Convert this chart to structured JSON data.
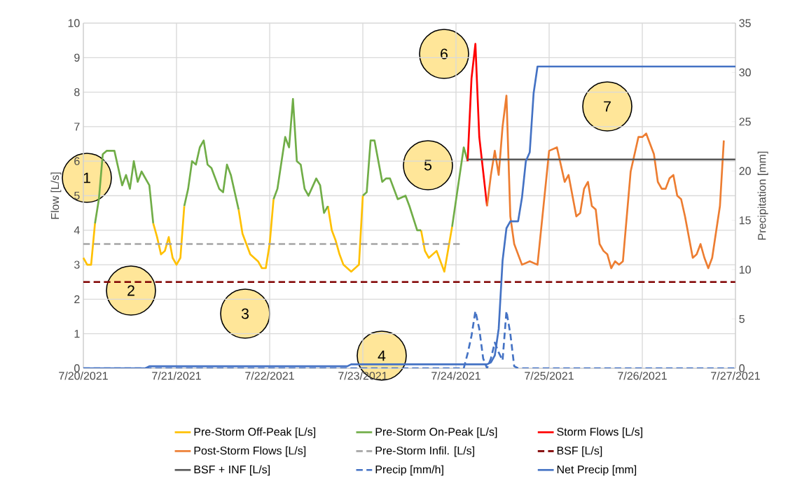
{
  "chart_data": {
    "type": "line",
    "ylabel": "Flow [L/s]",
    "y2label": "Precipitation [mm]",
    "xlim": [
      "2021-07-20",
      "2021-07-27"
    ],
    "xticks": [
      {
        "value": "2021-07-20",
        "label": "7/20/2021"
      },
      {
        "value": "2021-07-21",
        "label": "7/21/2021"
      },
      {
        "value": "2021-07-22",
        "label": "7/22/2021"
      },
      {
        "value": "2021-07-23",
        "label": "7/23/2021"
      },
      {
        "value": "2021-07-24",
        "label": "7/24/2021"
      },
      {
        "value": "2021-07-25",
        "label": "7/25/2021"
      },
      {
        "value": "2021-07-26",
        "label": "7/26/2021"
      },
      {
        "value": "2021-07-27",
        "label": "7/27/2021"
      }
    ],
    "ylim": [
      0,
      10
    ],
    "yticks": [
      0,
      1,
      2,
      3,
      4,
      5,
      6,
      7,
      8,
      9,
      10
    ],
    "y2lim": [
      0,
      35
    ],
    "y2ticks": [
      0,
      5,
      10,
      15,
      20,
      25,
      30,
      35
    ],
    "grid": true,
    "legend": "bottom",
    "series": [
      {
        "name": "Pre-Storm Off-Peak [L/s]",
        "color": "#ffc000",
        "line_style": "solid",
        "x": [
          "2021-07-20T00:00",
          "2021-07-20T01:00",
          "2021-07-20T02:00",
          "2021-07-20T03:00",
          "2021-07-20T10:00",
          "2021-07-20T18:00",
          "2021-07-20T19:00",
          "2021-07-20T20:00",
          "2021-07-20T21:00",
          "2021-07-20T22:00",
          "2021-07-20T23:00",
          "2021-07-21T00:00",
          "2021-07-21T01:00",
          "2021-07-21T02:00",
          "2021-07-21T09:00",
          "2021-07-21T16:00",
          "2021-07-21T17:00",
          "2021-07-21T19:00",
          "2021-07-21T21:00",
          "2021-07-21T22:00",
          "2021-07-21T23:00",
          "2021-07-22T00:00",
          "2021-07-22T01:00",
          "2021-07-22T08:00",
          "2021-07-22T15:00",
          "2021-07-22T16:00",
          "2021-07-22T17:00",
          "2021-07-22T18:00",
          "2021-07-22T19:00",
          "2021-07-22T21:00",
          "2021-07-22T23:00",
          "2021-07-23T00:00",
          "2021-07-23T07:00",
          "2021-07-23T15:00",
          "2021-07-23T16:00",
          "2021-07-23T17:00",
          "2021-07-23T19:00",
          "2021-07-23T21:00",
          "2021-07-23T23:00"
        ],
        "values": [
          3.2,
          3.0,
          3.0,
          4.2,
          null,
          4.2,
          3.8,
          3.3,
          3.4,
          3.8,
          3.2,
          3.0,
          3.2,
          4.7,
          null,
          4.6,
          3.9,
          3.3,
          3.1,
          2.9,
          2.9,
          3.6,
          4.9,
          null,
          4.7,
          4.0,
          3.7,
          3.3,
          3.0,
          2.8,
          3.0,
          5.0,
          null,
          4.0,
          3.4,
          3.2,
          3.4,
          2.8,
          4.1
        ]
      },
      {
        "name": "Pre-Storm On-Peak [L/s]",
        "color": "#70ad47",
        "line_style": "solid",
        "x": [
          "2021-07-20T03:00",
          "2021-07-20T04:00",
          "2021-07-20T05:00",
          "2021-07-20T06:00",
          "2021-07-20T07:00",
          "2021-07-20T08:00",
          "2021-07-20T10:00",
          "2021-07-20T11:00",
          "2021-07-20T12:00",
          "2021-07-20T13:00",
          "2021-07-20T14:00",
          "2021-07-20T15:00",
          "2021-07-20T16:00",
          "2021-07-20T17:00",
          "2021-07-20T18:00",
          "2021-07-20T22:00",
          "2021-07-21T02:00",
          "2021-07-21T03:00",
          "2021-07-21T04:00",
          "2021-07-21T05:00",
          "2021-07-21T06:00",
          "2021-07-21T07:00",
          "2021-07-21T08:00",
          "2021-07-21T09:00",
          "2021-07-21T10:00",
          "2021-07-21T11:00",
          "2021-07-21T12:00",
          "2021-07-21T13:00",
          "2021-07-21T14:00",
          "2021-07-21T16:00",
          "2021-07-21T20:00",
          "2021-07-22T01:00",
          "2021-07-22T02:00",
          "2021-07-22T04:00",
          "2021-07-22T05:00",
          "2021-07-22T06:00",
          "2021-07-22T07:00",
          "2021-07-22T08:00",
          "2021-07-22T09:00",
          "2021-07-22T10:00",
          "2021-07-22T12:00",
          "2021-07-22T13:00",
          "2021-07-22T14:00",
          "2021-07-22T15:00",
          "2021-07-22T20:00",
          "2021-07-23T00:00",
          "2021-07-23T01:00",
          "2021-07-23T02:00",
          "2021-07-23T03:00",
          "2021-07-23T05:00",
          "2021-07-23T06:00",
          "2021-07-23T07:00",
          "2021-07-23T09:00",
          "2021-07-23T11:00",
          "2021-07-23T12:00",
          "2021-07-23T14:00",
          "2021-07-23T15:00",
          "2021-07-23T19:00",
          "2021-07-23T23:00",
          "2021-07-24T02:00",
          "2021-07-24T03:00"
        ],
        "values": [
          4.2,
          4.9,
          6.2,
          6.3,
          6.3,
          6.3,
          5.3,
          5.6,
          5.2,
          6.0,
          5.4,
          5.7,
          5.5,
          5.3,
          4.2,
          null,
          4.7,
          5.2,
          6.0,
          5.9,
          6.4,
          6.6,
          5.9,
          5.8,
          5.5,
          5.2,
          5.1,
          5.9,
          5.6,
          4.6,
          null,
          4.9,
          5.2,
          6.7,
          6.4,
          7.8,
          6.0,
          5.9,
          5.2,
          5.0,
          5.5,
          5.3,
          4.5,
          4.7,
          null,
          5.0,
          5.1,
          6.6,
          6.6,
          5.4,
          5.5,
          5.5,
          4.9,
          5.0,
          4.7,
          4.0,
          4.0,
          null,
          4.1,
          6.4,
          6.0
        ]
      },
      {
        "name": "Storm Flows [L/s]",
        "color": "#ff0000",
        "line_style": "solid",
        "x": [
          "2021-07-24T03:00",
          "2021-07-24T04:00",
          "2021-07-24T05:00",
          "2021-07-24T06:00",
          "2021-07-24T08:00"
        ],
        "values": [
          6.0,
          8.4,
          9.4,
          6.7,
          4.7
        ]
      },
      {
        "name": "Post-Storm Flows [L/s]",
        "color": "#ed7d31",
        "line_style": "solid",
        "x": [
          "2021-07-24T08:00",
          "2021-07-24T09:00",
          "2021-07-24T10:00",
          "2021-07-24T11:00",
          "2021-07-24T12:00",
          "2021-07-24T13:00",
          "2021-07-24T14:00",
          "2021-07-24T15:00",
          "2021-07-24T17:00",
          "2021-07-24T19:00",
          "2021-07-24T21:00",
          "2021-07-25T00:00",
          "2021-07-25T02:00",
          "2021-07-25T04:00",
          "2021-07-25T05:00",
          "2021-07-25T07:00",
          "2021-07-25T08:00",
          "2021-07-25T09:00",
          "2021-07-25T10:00",
          "2021-07-25T11:00",
          "2021-07-25T12:00",
          "2021-07-25T13:00",
          "2021-07-25T14:00",
          "2021-07-25T15:00",
          "2021-07-25T16:00",
          "2021-07-25T17:00",
          "2021-07-25T18:00",
          "2021-07-25T19:00",
          "2021-07-25T21:00",
          "2021-07-25T23:00",
          "2021-07-26T00:00",
          "2021-07-26T01:00",
          "2021-07-26T03:00",
          "2021-07-26T04:00",
          "2021-07-26T05:00",
          "2021-07-26T06:00",
          "2021-07-26T07:00",
          "2021-07-26T08:00",
          "2021-07-26T09:00",
          "2021-07-26T10:00",
          "2021-07-26T11:00",
          "2021-07-26T13:00",
          "2021-07-26T14:00",
          "2021-07-26T15:00",
          "2021-07-26T16:00",
          "2021-07-26T17:00",
          "2021-07-26T18:00",
          "2021-07-26T20:00",
          "2021-07-26T21:00"
        ],
        "values": [
          4.7,
          5.6,
          6.3,
          5.6,
          7.0,
          7.9,
          4.4,
          3.6,
          3.0,
          3.1,
          3.0,
          6.3,
          6.4,
          5.4,
          5.6,
          4.4,
          4.5,
          5.2,
          5.4,
          4.7,
          4.6,
          3.6,
          3.4,
          3.3,
          2.9,
          3.1,
          3.0,
          3.1,
          5.7,
          6.7,
          6.7,
          6.8,
          6.2,
          5.4,
          5.2,
          5.2,
          5.5,
          5.6,
          5.0,
          4.9,
          4.4,
          3.2,
          3.3,
          3.6,
          3.2,
          2.9,
          3.2,
          4.7,
          6.6
        ]
      },
      {
        "name": "Pre-Storm Infil. [L/s]",
        "color": "#a5a5a5",
        "line_style": "dashed",
        "x": [
          "2021-07-20T00:00",
          "2021-07-24T01:30"
        ],
        "values": [
          3.6,
          3.6
        ]
      },
      {
        "name": "BSF [L/s]",
        "color": "#800000",
        "line_style": "dashed",
        "x": [
          "2021-07-20T00:00",
          "2021-07-27T00:00"
        ],
        "values": [
          2.5,
          2.5
        ]
      },
      {
        "name": "BSF + INF [L/s]",
        "color": "#595959",
        "line_style": "solid",
        "x": [
          "2021-07-24T03:00",
          "2021-07-27T00:00"
        ],
        "values": [
          6.05,
          6.05
        ]
      },
      {
        "name": "Precip [mm/h]",
        "color": "#4472c4",
        "line_style": "dashed",
        "axis": "y2",
        "x": [
          "2021-07-20T00:00",
          "2021-07-24T02:00",
          "2021-07-24T03:00",
          "2021-07-24T04:00",
          "2021-07-24T05:00",
          "2021-07-24T06:00",
          "2021-07-24T07:00",
          "2021-07-24T08:00",
          "2021-07-24T09:00",
          "2021-07-24T10:00",
          "2021-07-24T11:00",
          "2021-07-24T12:00",
          "2021-07-24T13:00",
          "2021-07-24T14:00",
          "2021-07-24T15:00",
          "2021-07-24T16:00",
          "2021-07-27T00:00"
        ],
        "values": [
          0,
          0,
          1.5,
          3.3,
          5.8,
          4.0,
          1.0,
          0,
          1.0,
          2.6,
          1.6,
          0.8,
          5.8,
          3.5,
          0.2,
          0,
          0
        ]
      },
      {
        "name": "Net Precip [mm]",
        "color": "#4472c4",
        "line_style": "solid",
        "axis": "y2",
        "x": [
          "2021-07-20T00:00",
          "2021-07-20T16:00",
          "2021-07-20T17:00",
          "2021-07-22T20:00",
          "2021-07-22T21:00",
          "2021-07-24T08:00",
          "2021-07-24T09:00",
          "2021-07-24T10:00",
          "2021-07-24T11:00",
          "2021-07-24T12:00",
          "2021-07-24T13:00",
          "2021-07-24T14:00",
          "2021-07-24T16:00",
          "2021-07-24T17:00",
          "2021-07-24T18:00",
          "2021-07-24T19:00",
          "2021-07-24T20:00",
          "2021-07-24T21:00",
          "2021-07-27T00:00"
        ],
        "values": [
          0,
          0,
          0.2,
          0.2,
          0.4,
          0.4,
          0.6,
          1.3,
          4.0,
          10.9,
          14.2,
          14.9,
          14.9,
          17.3,
          21.0,
          21.9,
          27.9,
          30.6,
          30.6
        ]
      }
    ],
    "annotations": [
      "1",
      "2",
      "3",
      "4",
      "5",
      "6",
      "7"
    ]
  }
}
